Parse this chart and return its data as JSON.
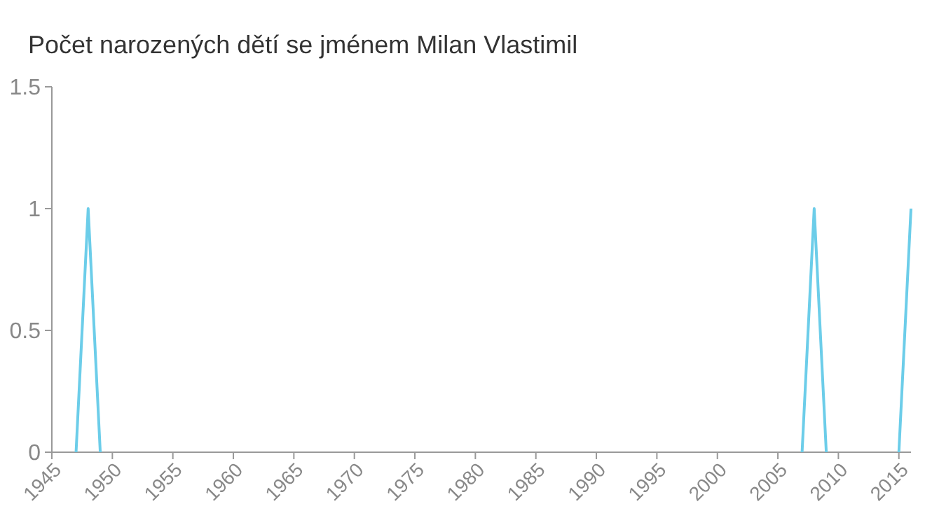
{
  "chart_data": {
    "type": "line",
    "title": "Počet narozených dětí se jménem Milan Vlastimil",
    "x": [
      1947,
      1948,
      1949,
      1978,
      2007,
      2008,
      2009,
      2012,
      2015,
      2016
    ],
    "series": [
      {
        "color": "#6ccde9",
        "values": [
          0,
          1,
          0,
          null,
          0,
          1,
          0,
          null,
          0,
          1
        ]
      }
    ],
    "xlim": [
      1945,
      2016
    ],
    "xticks": [
      1945,
      1950,
      1955,
      1960,
      1965,
      1970,
      1975,
      1980,
      1985,
      1990,
      1995,
      2000,
      2005,
      2010,
      2015
    ],
    "ylim": [
      0,
      1.5
    ],
    "yticks": [
      0,
      0.5,
      1,
      1.5
    ],
    "grid": false,
    "marker": "none",
    "line_style": "solid"
  }
}
